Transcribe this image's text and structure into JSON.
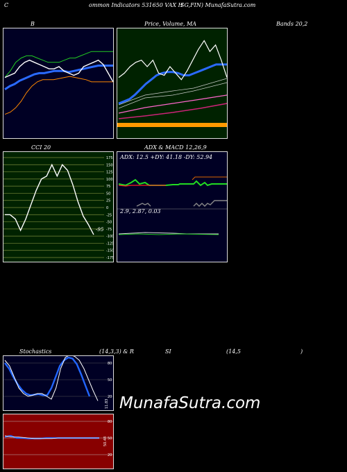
{
  "header": {
    "left_c": "C",
    "part1": "ommon  Indicators 531650  VAX  H",
    "part2": "SG,FIN) MunafaSutra.com"
  },
  "row1": {
    "b_label": "B",
    "price_label": "Price,  Volume,  MA",
    "bands_label": "Bands 20,2"
  },
  "row2": {
    "cci_label": "CCI 20",
    "adx_label": "ADX  & MACD 12,26,9",
    "adx_readout": "ADX: 12.5  +DY: 41.18  -DY: 52.94",
    "macd_readout": "2.9,  2.87,  0.03",
    "cci_current": "-95",
    "cci_ticks": [
      "175",
      "150",
      "125",
      "100",
      "75",
      "50",
      "25",
      "0",
      "-25",
      "-50",
      "-75",
      "-100",
      "-125",
      "-150",
      "-175"
    ]
  },
  "row3": {
    "stoch_label": "Stochastics",
    "stoch_params": "(14,3,3) & R",
    "si_label": "SI",
    "rsi_params": "(14,5",
    "close_paren": ")",
    "stoch_ticks": [
      "80",
      "50",
      "20"
    ],
    "stoch_side": "11.83",
    "rsi_ticks": [
      "80",
      "50",
      "20"
    ],
    "rsi_side": "50.48"
  },
  "watermark": "MunafaSutra.com",
  "colors": {
    "navy": "#000024",
    "green_bg": "#002200",
    "olive_bg": "#002200",
    "red_bg": "#880000",
    "blue": "#2060ff",
    "orange": "#ff9a00",
    "bright_green": "#22dd22"
  },
  "chart_data": [
    {
      "type": "line",
      "title": "B",
      "series": [
        {
          "values": [
            0.56,
            0.58,
            0.6,
            0.66,
            0.7,
            0.72,
            0.7,
            0.68,
            0.66,
            0.64,
            0.64,
            0.66,
            0.62,
            0.6,
            0.58,
            0.6,
            0.66,
            0.68,
            0.7,
            0.72,
            0.68,
            0.6,
            0.52
          ]
        },
        {
          "values": [
            0.45,
            0.48,
            0.5,
            0.53,
            0.55,
            0.57,
            0.59,
            0.6,
            0.6,
            0.61,
            0.62,
            0.62,
            0.62,
            0.61,
            0.62,
            0.63,
            0.64,
            0.65,
            0.66,
            0.67,
            0.67,
            0.67,
            0.67
          ]
        },
        {
          "values": [
            0.62,
            0.64,
            0.68,
            0.72,
            0.73,
            0.72,
            0.7,
            0.68,
            0.66,
            0.65,
            0.65,
            0.66,
            0.66,
            0.66,
            0.67,
            0.7,
            0.74,
            0.76,
            0.78,
            0.78,
            0.78
          ]
        }
      ]
    },
    {
      "type": "line",
      "title": "Price,  Volume,  MA",
      "series": [
        {
          "values": [
            0.56,
            0.6,
            0.66,
            0.7,
            0.72,
            0.66,
            0.72,
            0.6,
            0.58,
            0.66,
            0.6,
            0.54,
            0.62,
            0.72,
            0.82,
            0.9,
            0.8,
            0.86,
            0.72,
            0.56
          ]
        },
        {
          "values": [
            0.32,
            0.34,
            0.36,
            0.4,
            0.45,
            0.5,
            0.54,
            0.58,
            0.6,
            0.61,
            0.61,
            0.6,
            0.58,
            0.58,
            0.6,
            0.62,
            0.64,
            0.66,
            0.68,
            0.68,
            0.68
          ]
        }
      ]
    },
    {
      "type": "line",
      "title": "CCI 20",
      "ylim": [
        -175,
        175
      ],
      "series": [
        {
          "values": [
            -25,
            -25,
            -40,
            -80,
            -40,
            10,
            60,
            100,
            110,
            150,
            110,
            150,
            130,
            80,
            20,
            -30,
            -60,
            -95
          ]
        }
      ]
    },
    {
      "type": "line",
      "title": "ADX  & MACD 12,26,9",
      "series": [
        {
          "values": [
            12.5,
            12.8,
            13,
            12.6,
            12.4,
            12.5
          ]
        },
        {
          "values": [
            2.9,
            2.9,
            2.88,
            2.87,
            2.87
          ]
        }
      ]
    },
    {
      "type": "line",
      "title": "Stochastics",
      "ylim": [
        0,
        100
      ],
      "series": [
        {
          "values": [
            85,
            75,
            55,
            35,
            25,
            20,
            22,
            25,
            25,
            20,
            15,
            35,
            70,
            90,
            95,
            92,
            85,
            70,
            50,
            30,
            12
          ]
        },
        {
          "values": [
            80,
            70,
            55,
            42,
            32,
            25,
            22,
            23,
            24,
            22,
            22,
            35,
            55,
            75,
            85,
            90,
            88,
            78,
            60,
            40,
            20
          ]
        }
      ]
    },
    {
      "type": "line",
      "title": "RSI",
      "ylim": [
        0,
        100
      ],
      "series": [
        {
          "values": [
            52,
            54,
            50,
            50,
            49,
            49,
            49,
            50,
            50,
            50,
            50,
            50,
            50,
            50,
            50,
            50,
            50
          ]
        },
        {
          "values": [
            54,
            52,
            52,
            51,
            50,
            49,
            49,
            49,
            49,
            50,
            50,
            50,
            50,
            50,
            50,
            50,
            50
          ]
        }
      ]
    }
  ]
}
